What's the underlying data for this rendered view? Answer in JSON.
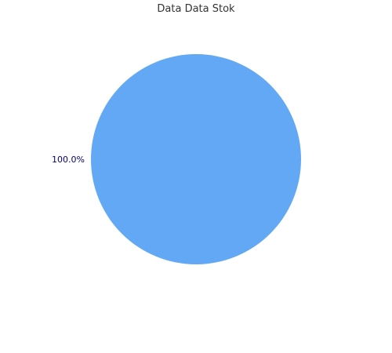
{
  "chart_data": {
    "type": "pie",
    "title": "Data Data Stok",
    "slices": [
      {
        "value": 100.0,
        "label": "100.0%"
      }
    ],
    "colors": {
      "slice": "#62a8f4",
      "label": "#000080"
    },
    "legend": "none"
  }
}
